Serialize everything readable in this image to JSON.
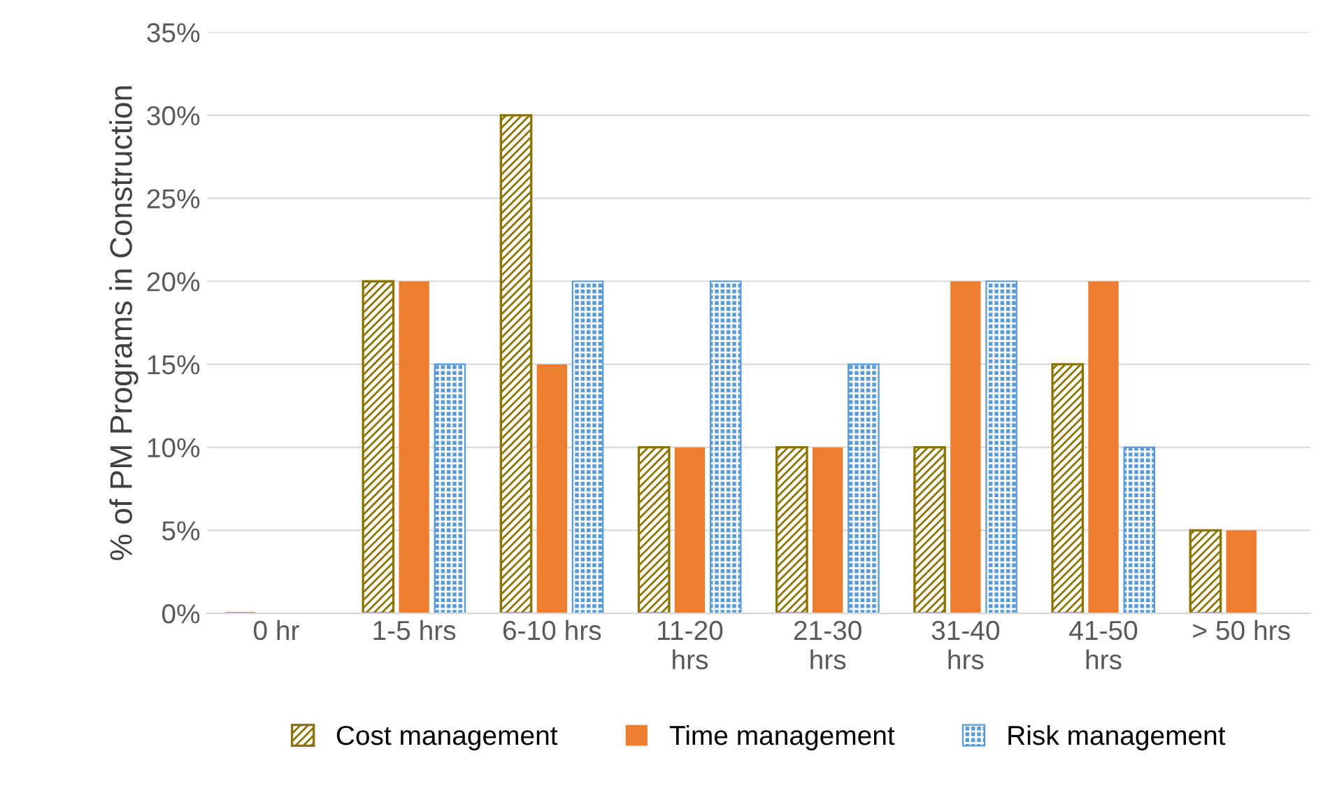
{
  "chart_data": {
    "type": "bar",
    "ylabel": "% of PM Programs in Construction",
    "categories": [
      "0 hr",
      "1-5 hrs",
      "6-10 hrs",
      "11-20\nhrs",
      "21-30\nhrs",
      "31-40\nhrs",
      "41-50\nhrs",
      "> 50 hrs"
    ],
    "series": [
      {
        "name": "Cost management",
        "color": "#8b7500",
        "values": [
          0,
          20,
          30,
          10,
          10,
          10,
          15,
          5
        ]
      },
      {
        "name": "Time management",
        "color": "#ed7d31",
        "values": [
          0,
          20,
          15,
          10,
          10,
          20,
          20,
          5
        ]
      },
      {
        "name": "Risk management",
        "color": "#5b9bd5",
        "values": [
          0,
          15,
          20,
          20,
          15,
          20,
          10,
          0
        ]
      }
    ],
    "ylim": [
      0,
      35
    ],
    "yticks": [
      {
        "value": 0,
        "label": "0%"
      },
      {
        "value": 5,
        "label": "5%"
      },
      {
        "value": 10,
        "label": "10%"
      },
      {
        "value": 15,
        "label": "15%"
      },
      {
        "value": 20,
        "label": "20%"
      },
      {
        "value": 25,
        "label": "25%"
      },
      {
        "value": 30,
        "label": "30%"
      },
      {
        "value": 35,
        "label": "35%"
      }
    ],
    "grid": "y",
    "legend": "bottom"
  }
}
